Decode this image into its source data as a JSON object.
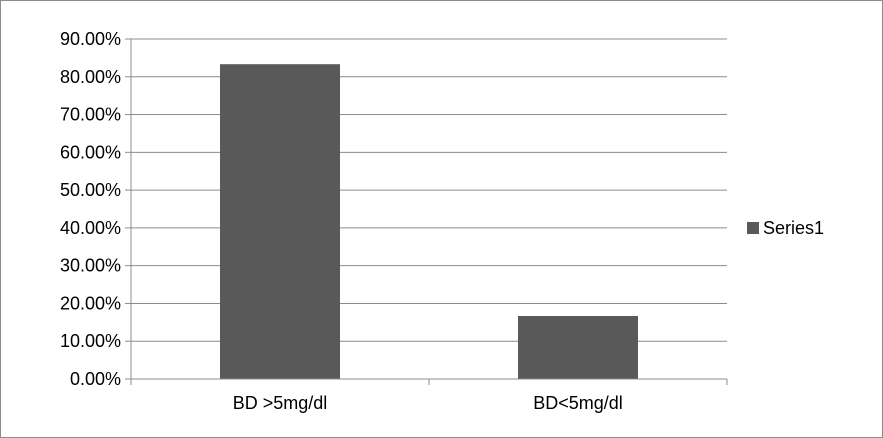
{
  "chart_data": {
    "type": "bar",
    "categories": [
      "BD >5mg/dl",
      "BD<5mg/dl"
    ],
    "series": [
      {
        "name": "Series1",
        "values": [
          83.33,
          16.67
        ],
        "color": "#595959"
      }
    ],
    "y_ticks": [
      "0.00%",
      "10.00%",
      "20.00%",
      "30.00%",
      "40.00%",
      "50.00%",
      "60.00%",
      "70.00%",
      "80.00%",
      "90.00%"
    ],
    "ylim": [
      0,
      90
    ],
    "y_unit": "%",
    "grid": true,
    "legend": {
      "position": "right",
      "labels": [
        "Series1"
      ]
    },
    "title": "",
    "xlabel": "",
    "ylabel": ""
  }
}
